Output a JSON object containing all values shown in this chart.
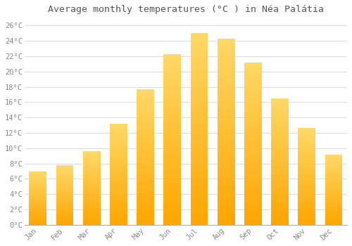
{
  "title": "Average monthly temperatures (°C ) in Néa Palátia",
  "months": [
    "Jan",
    "Feb",
    "Mar",
    "Apr",
    "May",
    "Jun",
    "Jul",
    "Aug",
    "Sep",
    "Oct",
    "Nov",
    "Dec"
  ],
  "values": [
    7.0,
    7.8,
    9.6,
    13.2,
    17.7,
    22.3,
    25.0,
    24.3,
    21.2,
    16.5,
    12.6,
    9.2
  ],
  "bar_color_bottom": "#FFA500",
  "bar_color_top": "#FFD966",
  "background_color": "#FFFFFF",
  "grid_color": "#DDDDDD",
  "text_color": "#888888",
  "title_color": "#555555",
  "ylim": [
    0,
    27
  ],
  "yticks": [
    0,
    2,
    4,
    6,
    8,
    10,
    12,
    14,
    16,
    18,
    20,
    22,
    24,
    26
  ],
  "title_fontsize": 9.5,
  "tick_fontsize": 7.5,
  "bar_width": 0.65
}
